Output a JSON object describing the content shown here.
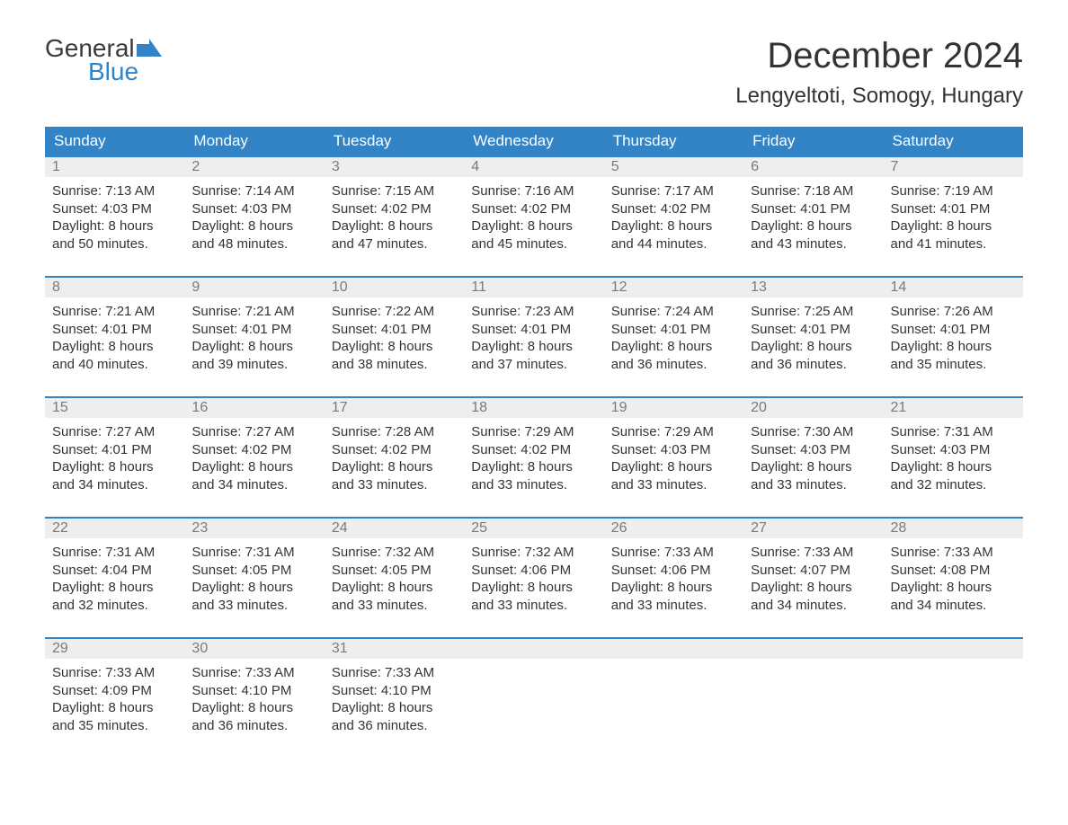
{
  "logo": {
    "top": "General",
    "bottom": "Blue"
  },
  "title": "December 2024",
  "location": "Lengyeltoti, Somogy, Hungary",
  "colors": {
    "header_bg": "#3284c6",
    "header_text": "#ffffff",
    "daynum_bg": "#eeeeee",
    "daynum_text": "#7a7a7a",
    "body_text": "#343434",
    "row_divider": "#3284c6",
    "logo_top": "#3a3a3a",
    "logo_bottom": "#3284c6",
    "background": "#ffffff"
  },
  "typography": {
    "month_title_fontsize": 40,
    "location_fontsize": 24,
    "header_fontsize": 17,
    "daynum_fontsize": 16,
    "info_fontsize": 15,
    "font_family": "Arial, Helvetica, sans-serif"
  },
  "day_headers": [
    "Sunday",
    "Monday",
    "Tuesday",
    "Wednesday",
    "Thursday",
    "Friday",
    "Saturday"
  ],
  "weeks": [
    [
      {
        "day": "1",
        "sunrise": "Sunrise: 7:13 AM",
        "sunset": "Sunset: 4:03 PM",
        "dl1": "Daylight: 8 hours",
        "dl2": "and 50 minutes."
      },
      {
        "day": "2",
        "sunrise": "Sunrise: 7:14 AM",
        "sunset": "Sunset: 4:03 PM",
        "dl1": "Daylight: 8 hours",
        "dl2": "and 48 minutes."
      },
      {
        "day": "3",
        "sunrise": "Sunrise: 7:15 AM",
        "sunset": "Sunset: 4:02 PM",
        "dl1": "Daylight: 8 hours",
        "dl2": "and 47 minutes."
      },
      {
        "day": "4",
        "sunrise": "Sunrise: 7:16 AM",
        "sunset": "Sunset: 4:02 PM",
        "dl1": "Daylight: 8 hours",
        "dl2": "and 45 minutes."
      },
      {
        "day": "5",
        "sunrise": "Sunrise: 7:17 AM",
        "sunset": "Sunset: 4:02 PM",
        "dl1": "Daylight: 8 hours",
        "dl2": "and 44 minutes."
      },
      {
        "day": "6",
        "sunrise": "Sunrise: 7:18 AM",
        "sunset": "Sunset: 4:01 PM",
        "dl1": "Daylight: 8 hours",
        "dl2": "and 43 minutes."
      },
      {
        "day": "7",
        "sunrise": "Sunrise: 7:19 AM",
        "sunset": "Sunset: 4:01 PM",
        "dl1": "Daylight: 8 hours",
        "dl2": "and 41 minutes."
      }
    ],
    [
      {
        "day": "8",
        "sunrise": "Sunrise: 7:21 AM",
        "sunset": "Sunset: 4:01 PM",
        "dl1": "Daylight: 8 hours",
        "dl2": "and 40 minutes."
      },
      {
        "day": "9",
        "sunrise": "Sunrise: 7:21 AM",
        "sunset": "Sunset: 4:01 PM",
        "dl1": "Daylight: 8 hours",
        "dl2": "and 39 minutes."
      },
      {
        "day": "10",
        "sunrise": "Sunrise: 7:22 AM",
        "sunset": "Sunset: 4:01 PM",
        "dl1": "Daylight: 8 hours",
        "dl2": "and 38 minutes."
      },
      {
        "day": "11",
        "sunrise": "Sunrise: 7:23 AM",
        "sunset": "Sunset: 4:01 PM",
        "dl1": "Daylight: 8 hours",
        "dl2": "and 37 minutes."
      },
      {
        "day": "12",
        "sunrise": "Sunrise: 7:24 AM",
        "sunset": "Sunset: 4:01 PM",
        "dl1": "Daylight: 8 hours",
        "dl2": "and 36 minutes."
      },
      {
        "day": "13",
        "sunrise": "Sunrise: 7:25 AM",
        "sunset": "Sunset: 4:01 PM",
        "dl1": "Daylight: 8 hours",
        "dl2": "and 36 minutes."
      },
      {
        "day": "14",
        "sunrise": "Sunrise: 7:26 AM",
        "sunset": "Sunset: 4:01 PM",
        "dl1": "Daylight: 8 hours",
        "dl2": "and 35 minutes."
      }
    ],
    [
      {
        "day": "15",
        "sunrise": "Sunrise: 7:27 AM",
        "sunset": "Sunset: 4:01 PM",
        "dl1": "Daylight: 8 hours",
        "dl2": "and 34 minutes."
      },
      {
        "day": "16",
        "sunrise": "Sunrise: 7:27 AM",
        "sunset": "Sunset: 4:02 PM",
        "dl1": "Daylight: 8 hours",
        "dl2": "and 34 minutes."
      },
      {
        "day": "17",
        "sunrise": "Sunrise: 7:28 AM",
        "sunset": "Sunset: 4:02 PM",
        "dl1": "Daylight: 8 hours",
        "dl2": "and 33 minutes."
      },
      {
        "day": "18",
        "sunrise": "Sunrise: 7:29 AM",
        "sunset": "Sunset: 4:02 PM",
        "dl1": "Daylight: 8 hours",
        "dl2": "and 33 minutes."
      },
      {
        "day": "19",
        "sunrise": "Sunrise: 7:29 AM",
        "sunset": "Sunset: 4:03 PM",
        "dl1": "Daylight: 8 hours",
        "dl2": "and 33 minutes."
      },
      {
        "day": "20",
        "sunrise": "Sunrise: 7:30 AM",
        "sunset": "Sunset: 4:03 PM",
        "dl1": "Daylight: 8 hours",
        "dl2": "and 33 minutes."
      },
      {
        "day": "21",
        "sunrise": "Sunrise: 7:31 AM",
        "sunset": "Sunset: 4:03 PM",
        "dl1": "Daylight: 8 hours",
        "dl2": "and 32 minutes."
      }
    ],
    [
      {
        "day": "22",
        "sunrise": "Sunrise: 7:31 AM",
        "sunset": "Sunset: 4:04 PM",
        "dl1": "Daylight: 8 hours",
        "dl2": "and 32 minutes."
      },
      {
        "day": "23",
        "sunrise": "Sunrise: 7:31 AM",
        "sunset": "Sunset: 4:05 PM",
        "dl1": "Daylight: 8 hours",
        "dl2": "and 33 minutes."
      },
      {
        "day": "24",
        "sunrise": "Sunrise: 7:32 AM",
        "sunset": "Sunset: 4:05 PM",
        "dl1": "Daylight: 8 hours",
        "dl2": "and 33 minutes."
      },
      {
        "day": "25",
        "sunrise": "Sunrise: 7:32 AM",
        "sunset": "Sunset: 4:06 PM",
        "dl1": "Daylight: 8 hours",
        "dl2": "and 33 minutes."
      },
      {
        "day": "26",
        "sunrise": "Sunrise: 7:33 AM",
        "sunset": "Sunset: 4:06 PM",
        "dl1": "Daylight: 8 hours",
        "dl2": "and 33 minutes."
      },
      {
        "day": "27",
        "sunrise": "Sunrise: 7:33 AM",
        "sunset": "Sunset: 4:07 PM",
        "dl1": "Daylight: 8 hours",
        "dl2": "and 34 minutes."
      },
      {
        "day": "28",
        "sunrise": "Sunrise: 7:33 AM",
        "sunset": "Sunset: 4:08 PM",
        "dl1": "Daylight: 8 hours",
        "dl2": "and 34 minutes."
      }
    ],
    [
      {
        "day": "29",
        "sunrise": "Sunrise: 7:33 AM",
        "sunset": "Sunset: 4:09 PM",
        "dl1": "Daylight: 8 hours",
        "dl2": "and 35 minutes."
      },
      {
        "day": "30",
        "sunrise": "Sunrise: 7:33 AM",
        "sunset": "Sunset: 4:10 PM",
        "dl1": "Daylight: 8 hours",
        "dl2": "and 36 minutes."
      },
      {
        "day": "31",
        "sunrise": "Sunrise: 7:33 AM",
        "sunset": "Sunset: 4:10 PM",
        "dl1": "Daylight: 8 hours",
        "dl2": "and 36 minutes."
      },
      null,
      null,
      null,
      null
    ]
  ]
}
